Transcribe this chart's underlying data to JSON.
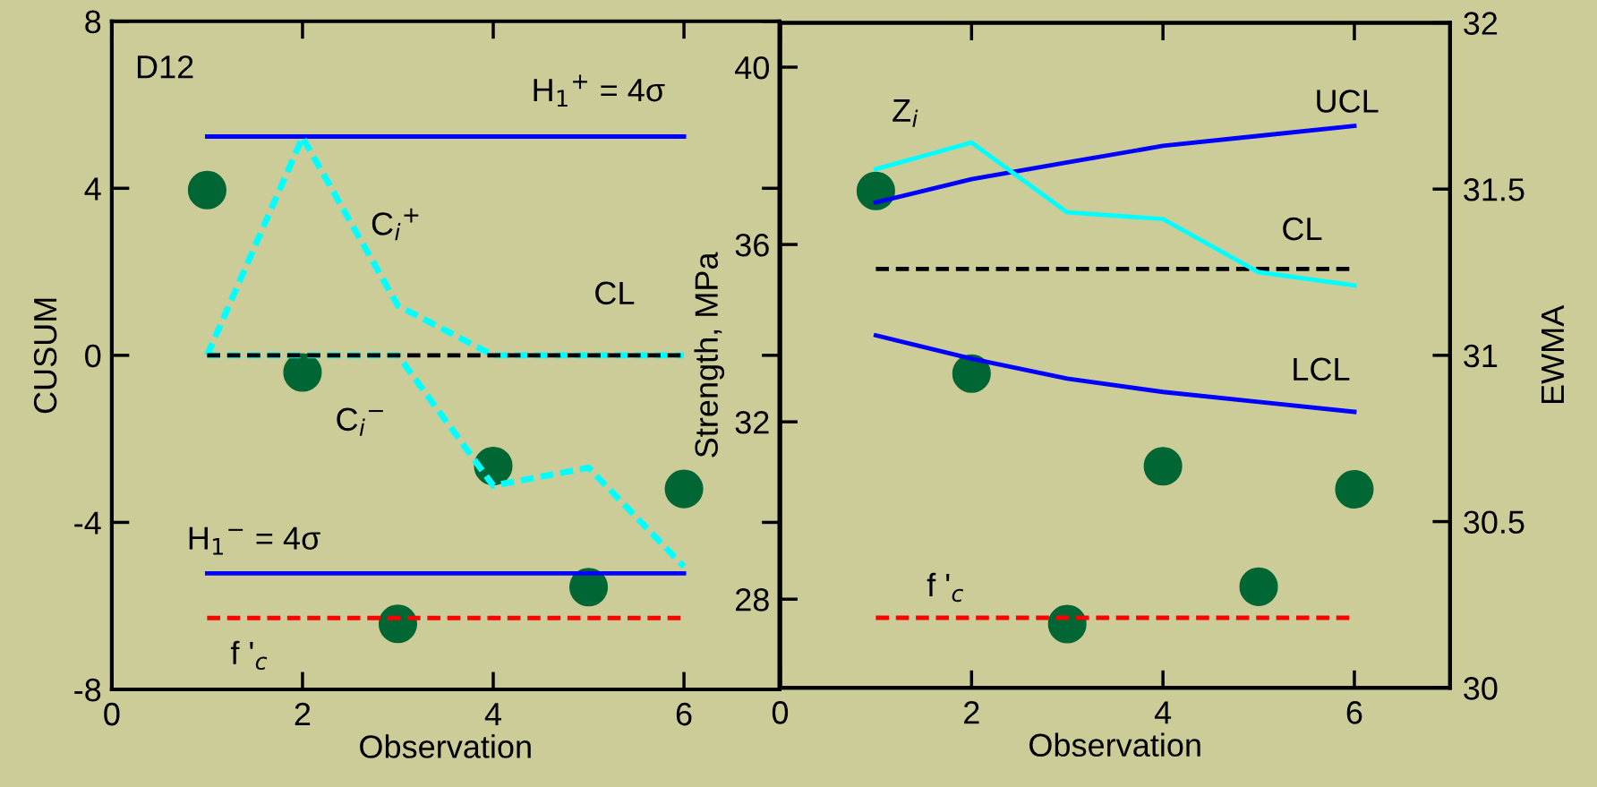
{
  "chart_data": [
    {
      "type": "line",
      "xlabel": "Observation",
      "ylabel": "CUSUM",
      "x": [
        1,
        2,
        3,
        4,
        5,
        6
      ],
      "xlim": [
        0,
        7
      ],
      "xticks": [
        0,
        2,
        4,
        6
      ],
      "ylim": [
        -8,
        8
      ],
      "yticks": [
        -8,
        -4,
        0,
        4,
        8
      ],
      "grid": false,
      "legend": false,
      "series": [
        {
          "color": "#0000ff",
          "line_style": "solid",
          "values": [
            5.24,
            5.24,
            5.24,
            5.24,
            5.24,
            5.24
          ]
        },
        {
          "color": "#0000ff",
          "line_style": "solid",
          "values": [
            -5.22,
            -5.22,
            -5.22,
            -5.22,
            -5.22,
            -5.22
          ]
        },
        {
          "color": "#ff0000",
          "line_style": "dashed",
          "values": [
            -6.29,
            -6.29,
            -6.29,
            -6.29,
            -6.29,
            -6.29
          ]
        },
        {
          "color": "#00ffff",
          "line_style": "dashed",
          "values": [
            0,
            5.22,
            1.19,
            0,
            0,
            0
          ]
        },
        {
          "color": "#00ffff",
          "line_style": "dashed",
          "values": [
            0,
            0,
            0,
            -3.12,
            -2.69,
            -5.06
          ]
        },
        {
          "color": "#000000",
          "line_style": "dashed",
          "values": [
            0,
            0,
            0,
            0,
            0,
            0
          ]
        },
        {
          "type": "scatter",
          "color": "#006633",
          "marker": "circle",
          "values": [
            3.96,
            -0.41,
            -6.43,
            -2.65,
            -5.55,
            -3.2
          ]
        }
      ],
      "annotations": [
        "D12",
        "H$_{1}$$^{+}$ = 4σ",
        "C$_{i}$$^{+}$",
        "CL",
        "C$_{i}$$^{−}$",
        "H$_{1}$$^{−}$ = 4σ",
        "f '$_{c}$"
      ]
    },
    {
      "type": "line",
      "xlabel": "Observation",
      "ylabel": "Strength, MPa",
      "y2label": "EWMA",
      "x": [
        1,
        2,
        3,
        4,
        5,
        6
      ],
      "xlim": [
        0,
        7
      ],
      "xticks": [
        0,
        2,
        4,
        6
      ],
      "ylim": [
        26,
        41
      ],
      "yticks": [
        28,
        32,
        36,
        40
      ],
      "y2lim": [
        30,
        32
      ],
      "y2ticks": [
        30,
        30.5,
        31,
        31.5,
        32
      ],
      "grid": false,
      "legend": false,
      "series": [
        {
          "axis": "y2",
          "color": "#0000ff",
          "line_style": "solid",
          "values": [
            31.46,
            31.53,
            31.58,
            31.63,
            31.66,
            31.69
          ]
        },
        {
          "axis": "y2",
          "color": "#0000ff",
          "line_style": "solid",
          "values": [
            31.06,
            30.99,
            30.93,
            30.89,
            30.86,
            30.83
          ]
        },
        {
          "axis": "y2",
          "color": "#000000",
          "line_style": "dashed",
          "values": [
            31.26,
            31.26,
            31.26,
            31.26,
            31.26,
            31.26
          ]
        },
        {
          "axis": "y2",
          "color": "#00ffff",
          "line_style": "solid",
          "values": [
            31.56,
            31.64,
            31.43,
            31.41,
            31.25,
            31.21
          ]
        },
        {
          "color": "#ff0000",
          "line_style": "dashed",
          "values": [
            27.58,
            27.58,
            27.58,
            27.58,
            27.58,
            27.58
          ]
        },
        {
          "type": "scatter",
          "color": "#006633",
          "marker": "circle",
          "values": [
            37.21,
            33.09,
            27.44,
            31.0,
            28.28,
            30.48
          ]
        }
      ],
      "annotations": [
        "UCL",
        "LCL",
        "CL",
        "Z$_{i}$",
        "f '$_{c}$"
      ]
    }
  ]
}
